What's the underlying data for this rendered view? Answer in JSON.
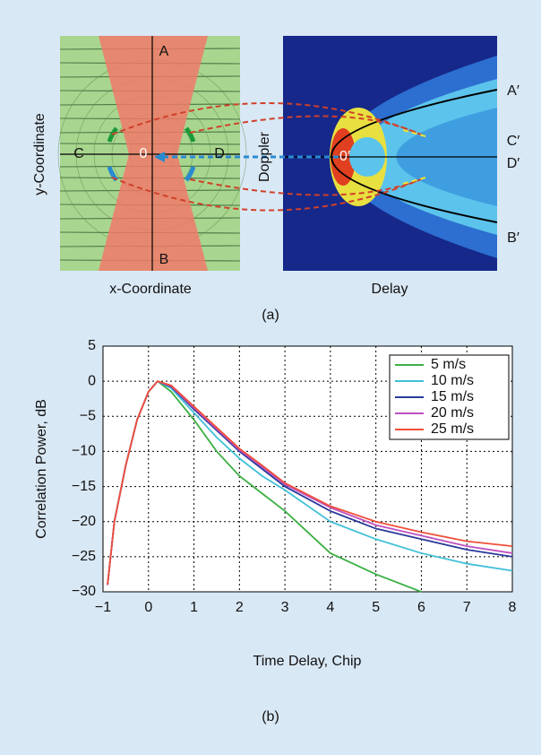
{
  "diagram": {
    "y_label": "y-Coordinate",
    "x_label": "x-Coordinate",
    "doppler_label": "Doppler",
    "delay_label": "Delay",
    "points": {
      "A": "A",
      "B": "B",
      "C": "C",
      "D": "D",
      "O": "0"
    },
    "primed_points": {
      "A": "A′",
      "B": "B′",
      "C": "C′",
      "D": "D′",
      "O": "0′"
    },
    "caption": "(a)"
  },
  "chart_data": {
    "type": "line",
    "caption": "(b)",
    "x_label": "Time Delay, Chip",
    "y_label": "Correlation Power, dB",
    "x": [
      -0.9,
      -0.75,
      -0.5,
      -0.25,
      0,
      0.2,
      0.5,
      1,
      1.5,
      2,
      2.5,
      3,
      4,
      5,
      6,
      7,
      8
    ],
    "series": [
      {
        "name": "5 m/s",
        "color": "#3cb043",
        "values": [
          -29,
          -20,
          -12,
          -5.5,
          -1.5,
          0,
          -1.5,
          -5.5,
          -10,
          -13.5,
          -16,
          -18.5,
          -24.5,
          -27.5,
          -30,
          null,
          null
        ]
      },
      {
        "name": "10 m/s",
        "color": "#41c0d8",
        "values": [
          -29,
          -20,
          -12,
          -5.5,
          -1.5,
          0,
          -1,
          -4.5,
          -8,
          -11,
          -13.5,
          -15.5,
          -20,
          -22.5,
          -24.5,
          -26,
          -27
        ]
      },
      {
        "name": "15 m/s",
        "color": "#2a3a9a",
        "values": [
          -29,
          -20,
          -12,
          -5.5,
          -1.5,
          0,
          -0.8,
          -4,
          -7,
          -10,
          -12.5,
          -15,
          -18.5,
          -21,
          -22.5,
          -24,
          -25
        ]
      },
      {
        "name": "20 m/s",
        "color": "#c050c0",
        "values": [
          -29,
          -20,
          -12,
          -5.5,
          -1.5,
          0,
          -0.7,
          -3.8,
          -6.8,
          -9.8,
          -12.2,
          -14.7,
          -18,
          -20.5,
          -22,
          -23.5,
          -24.5
        ]
      },
      {
        "name": "25 m/s",
        "color": "#f0503a",
        "values": [
          -29,
          -20,
          -12,
          -5.5,
          -1.5,
          0,
          -0.6,
          -3.6,
          -6.6,
          -9.6,
          -12,
          -14.5,
          -17.8,
          -20,
          -21.5,
          -22.8,
          -23.5
        ]
      }
    ],
    "xlim": [
      -1,
      8
    ],
    "ylim": [
      -30,
      5
    ],
    "xticks": [
      {
        "value": -1,
        "label": "−1"
      },
      0,
      1,
      2,
      3,
      4,
      5,
      6,
      7,
      8
    ],
    "yticks": [
      5,
      0,
      {
        "value": -5,
        "label": "−5"
      },
      {
        "value": -10,
        "label": "−10"
      },
      {
        "value": -15,
        "label": "−15"
      },
      {
        "value": -20,
        "label": "−20"
      },
      {
        "value": -25,
        "label": "−25"
      },
      {
        "value": -30,
        "label": "−30"
      }
    ],
    "grid": true,
    "legend": "upper right"
  }
}
